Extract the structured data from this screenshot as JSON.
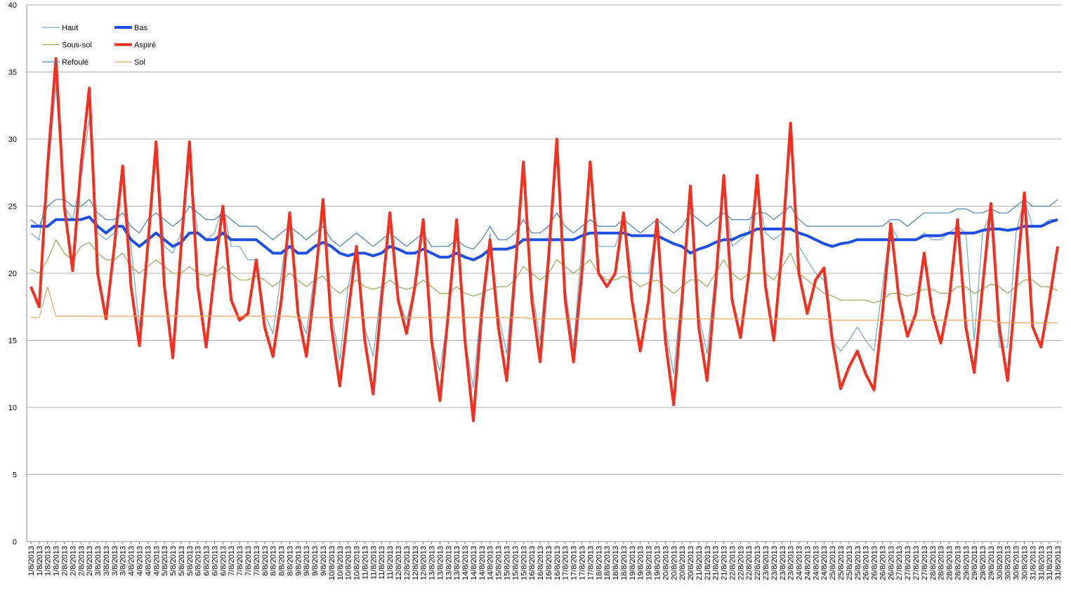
{
  "chart_data": {
    "type": "line",
    "categories": [
      "1/8/2013",
      "1/8/2013",
      "1/8/2013",
      "1/8/2013",
      "2/8/2013",
      "2/8/2013",
      "2/8/2013",
      "2/8/2013",
      "3/8/2013",
      "3/8/2013",
      "3/8/2013",
      "3/8/2013",
      "4/8/2013",
      "4/8/2013",
      "4/8/2013",
      "4/8/2013",
      "5/8/2013",
      "5/8/2013",
      "5/8/2013",
      "5/8/2013",
      "6/8/2013",
      "6/8/2013",
      "6/8/2013",
      "6/8/2013",
      "7/8/2013",
      "7/8/2013",
      "7/8/2013",
      "7/8/2013",
      "8/8/2013",
      "8/8/2013",
      "8/8/2013",
      "8/8/2013",
      "9/8/2013",
      "9/8/2013",
      "9/8/2013",
      "9/8/2013",
      "10/8/2013",
      "10/8/2013",
      "10/8/2013",
      "10/8/2013",
      "11/8/2013",
      "11/8/2013",
      "11/8/2013",
      "11/8/2013",
      "12/8/2013",
      "12/8/2013",
      "12/8/2013",
      "12/8/2013",
      "13/8/2013",
      "13/8/2013",
      "13/8/2013",
      "13/8/2013",
      "14/8/2013",
      "14/8/2013",
      "14/8/2013",
      "14/8/2013",
      "15/8/2013",
      "15/8/2013",
      "15/8/2013",
      "15/8/2013",
      "16/8/2013",
      "16/8/2013",
      "16/8/2013",
      "16/8/2013",
      "17/8/2013",
      "17/8/2013",
      "17/8/2013",
      "17/8/2013",
      "18/8/2013",
      "18/8/2013",
      "18/8/2013",
      "18/8/2013",
      "19/8/2013",
      "19/8/2013",
      "19/8/2013",
      "19/8/2013",
      "20/8/2013",
      "20/8/2013",
      "20/8/2013",
      "20/8/2013",
      "21/8/2013",
      "21/8/2013",
      "21/8/2013",
      "21/8/2013",
      "22/8/2013",
      "22/8/2013",
      "22/8/2013",
      "22/8/2013",
      "23/8/2013",
      "23/8/2013",
      "23/8/2013",
      "23/8/2013",
      "24/8/2013",
      "24/8/2013",
      "24/8/2013",
      "24/8/2013",
      "25/8/2013",
      "25/8/2013",
      "25/8/2013",
      "25/8/2013",
      "26/8/2013",
      "26/8/2013",
      "26/8/2013",
      "26/8/2013",
      "27/8/2013",
      "27/8/2013",
      "27/8/2013",
      "27/8/2013",
      "28/8/2013",
      "28/8/2013",
      "28/8/2013",
      "28/8/2013",
      "29/8/2013",
      "29/8/2013",
      "29/8/2013",
      "29/8/2013",
      "30/8/2013",
      "30/8/2013",
      "30/8/2013",
      "30/8/2013",
      "31/8/2013",
      "31/8/2013",
      "31/8/2013",
      "31/8/2013"
    ],
    "series": [
      {
        "name": "Haut",
        "color": "#6fa8c8",
        "linewidth": 1.2,
        "values": [
          23,
          22.5,
          27,
          34,
          25,
          24,
          27,
          31.5,
          23,
          22.5,
          23,
          27.5,
          22,
          16,
          22,
          28.5,
          22,
          21.5,
          23,
          28,
          23,
          22.5,
          23,
          25,
          22,
          22,
          21,
          21,
          17,
          15.5,
          20,
          24,
          17,
          15.5,
          20,
          25,
          17,
          13.5,
          19,
          22,
          16,
          13.8,
          19,
          24,
          18,
          16.5,
          19,
          23.5,
          15,
          12.7,
          17,
          23.5,
          15,
          11.5,
          18,
          23,
          17,
          14,
          21,
          27.5,
          19,
          15,
          22,
          28.5,
          19,
          14.5,
          22,
          27.5,
          22,
          22,
          22,
          24,
          20,
          20,
          20,
          23.5,
          16,
          12.5,
          19,
          26,
          17,
          14,
          20,
          26.5,
          22,
          22.5,
          23,
          26.5,
          23,
          22.5,
          23,
          29.5,
          22,
          21,
          20,
          19.5,
          15,
          14.2,
          15,
          16,
          15,
          14.2,
          19,
          23.5,
          22.5,
          22.5,
          22.5,
          23,
          22.5,
          22.5,
          23,
          23.5,
          23,
          15,
          23,
          24.5,
          14.5,
          14.5,
          23,
          25.5,
          23.5,
          23.5,
          24,
          24
        ]
      },
      {
        "name": "Sous-sol",
        "color": "#9aa35a",
        "linewidth": 1.2,
        "values": [
          20.3,
          20,
          21,
          22.5,
          21.5,
          21,
          22,
          22.3,
          21.5,
          21,
          21,
          21.5,
          20.5,
          20,
          20.5,
          21,
          20.5,
          20,
          20,
          20.5,
          20,
          19.8,
          20,
          20.5,
          20,
          19.5,
          19.5,
          19.8,
          19.5,
          19,
          19.5,
          20,
          19.5,
          19,
          19.5,
          19.8,
          19,
          18.5,
          19,
          19.5,
          19,
          18.8,
          19,
          19.5,
          19,
          18.8,
          19,
          19.5,
          19,
          18.5,
          18.5,
          19,
          18.5,
          18.3,
          18.5,
          18.8,
          19,
          19,
          19.5,
          20.5,
          20,
          19.5,
          20,
          21,
          20.5,
          20,
          20.5,
          21,
          20,
          19.5,
          19.5,
          19.8,
          19.5,
          19,
          19.3,
          19.5,
          19,
          18.5,
          19,
          19.5,
          19.5,
          19,
          20,
          21,
          20,
          19.5,
          20,
          20,
          20,
          19.5,
          20.5,
          21.5,
          20,
          19.5,
          19,
          18.5,
          18.3,
          18,
          18,
          18,
          18,
          17.8,
          18,
          18.5,
          18.5,
          18.3,
          18.5,
          18.8,
          18.8,
          18.5,
          18.5,
          19,
          19,
          18.5,
          18.8,
          19.2,
          19,
          18.5,
          19,
          19.5,
          19.5,
          19,
          19,
          18.7
        ]
      },
      {
        "name": "Refoulé",
        "color": "#4a7fa8",
        "linewidth": 1.2,
        "values": [
          24,
          23.5,
          25,
          25.5,
          25.5,
          25,
          25,
          25.5,
          24.5,
          24,
          24,
          24.5,
          23.5,
          23,
          24,
          24.5,
          24,
          23.5,
          24,
          25,
          24.5,
          24,
          24,
          24.5,
          24,
          23.5,
          23.5,
          23.5,
          23,
          22.5,
          23,
          23.5,
          23,
          22.5,
          23,
          23.5,
          22.5,
          22,
          22.5,
          23,
          22.5,
          22,
          22.5,
          23,
          22.5,
          22,
          22.5,
          23,
          22,
          22,
          22,
          22.5,
          22,
          21.8,
          22.5,
          23.5,
          22.5,
          22.5,
          23,
          24,
          23,
          23,
          23.5,
          24.5,
          23.5,
          23,
          23.5,
          24,
          23.5,
          23.5,
          23.5,
          24,
          23.5,
          23,
          23.5,
          24,
          23.5,
          23,
          23.5,
          24.5,
          24,
          23.5,
          24,
          24.5,
          24,
          24,
          24,
          24.5,
          24.5,
          24,
          24.5,
          25,
          24,
          23.5,
          23.5,
          23.5,
          23.5,
          23.5,
          23.5,
          23.5,
          23.5,
          23.5,
          23.5,
          24,
          24,
          23.5,
          24,
          24.5,
          24.5,
          24.5,
          24.5,
          24.8,
          24.8,
          24.5,
          24.5,
          24.8,
          24.5,
          24.5,
          25,
          25.5,
          25,
          25,
          25,
          25.5
        ]
      },
      {
        "name": "Bas",
        "color": "#1f4fe0",
        "linewidth": 4,
        "values": [
          23.5,
          23.5,
          23.5,
          24,
          24,
          24,
          24,
          24.2,
          23.5,
          23,
          23.5,
          23.5,
          22.5,
          22,
          22.5,
          23,
          22.5,
          22,
          22.3,
          23,
          23,
          22.5,
          22.5,
          23,
          22.5,
          22.5,
          22.5,
          22.5,
          22,
          21.5,
          21.5,
          22,
          21.5,
          21.5,
          22,
          22.3,
          22,
          21.5,
          21.3,
          21.5,
          21.5,
          21.3,
          21.5,
          22,
          21.8,
          21.5,
          21.5,
          21.8,
          21.5,
          21.2,
          21.2,
          21.5,
          21.2,
          21,
          21.3,
          21.8,
          21.8,
          21.8,
          22,
          22.5,
          22.5,
          22.5,
          22.5,
          22.5,
          22.5,
          22.5,
          22.8,
          23,
          23,
          23,
          23,
          23,
          22.8,
          22.8,
          22.8,
          22.8,
          22.5,
          22.2,
          22,
          21.5,
          21.8,
          22,
          22.3,
          22.5,
          22.5,
          22.8,
          23,
          23.3,
          23.3,
          23.3,
          23.3,
          23.3,
          23,
          22.8,
          22.5,
          22.2,
          22,
          22.2,
          22.3,
          22.5,
          22.5,
          22.5,
          22.5,
          22.5,
          22.5,
          22.5,
          22.5,
          22.8,
          22.8,
          22.8,
          23,
          23,
          23,
          23,
          23.2,
          23.3,
          23.3,
          23.2,
          23.3,
          23.5,
          23.5,
          23.5,
          23.8,
          24
        ]
      },
      {
        "name": "Aspiré",
        "color": "#f03020",
        "linewidth": 4,
        "values": [
          19,
          17.5,
          28,
          36,
          25,
          20.2,
          28,
          33.8,
          20,
          16.6,
          22,
          28,
          19,
          14.6,
          22,
          29.8,
          19,
          13.7,
          22,
          29.8,
          19,
          14.5,
          20,
          25,
          18,
          16.5,
          17,
          21,
          16,
          13.8,
          18,
          24.5,
          17,
          13.8,
          19,
          25.5,
          16,
          11.6,
          17,
          22,
          15,
          11,
          18,
          24.5,
          18,
          15.5,
          19,
          24,
          15,
          10.5,
          17,
          24,
          15,
          9,
          17,
          22.5,
          16,
          12,
          20,
          28.3,
          18,
          13.4,
          21,
          30,
          18,
          13.4,
          20,
          28.3,
          20,
          19,
          20,
          24.5,
          18,
          14.2,
          18,
          24,
          15,
          10.2,
          18,
          26.5,
          16,
          12,
          19,
          27.3,
          18,
          15.2,
          20,
          27.3,
          19,
          15,
          22,
          31.2,
          20,
          17,
          19.5,
          20.4,
          15,
          11.4,
          13,
          14.2,
          12.5,
          11.3,
          17,
          23.7,
          18,
          15.3,
          17,
          21.5,
          17,
          14.8,
          18,
          24,
          16,
          12.6,
          19,
          25.2,
          16,
          12,
          19,
          26,
          16,
          14.5,
          18,
          22
        ]
      },
      {
        "name": "Sol",
        "color": "#e8a060",
        "linewidth": 1.2,
        "values": [
          16.7,
          16.7,
          19,
          16.8,
          16.8,
          16.8,
          16.8,
          16.8,
          16.8,
          16.8,
          16.8,
          16.8,
          16.8,
          16.8,
          16.8,
          16.8,
          16.8,
          16.8,
          16.8,
          16.8,
          16.8,
          16.8,
          16.8,
          16.8,
          16.8,
          16.8,
          16.8,
          16.8,
          16.8,
          16.8,
          16.8,
          16.8,
          16.7,
          16.7,
          16.7,
          16.7,
          16.7,
          16.7,
          16.7,
          16.7,
          16.7,
          16.7,
          16.7,
          16.7,
          16.7,
          16.7,
          16.7,
          16.7,
          16.7,
          16.7,
          16.7,
          16.7,
          16.7,
          16.7,
          16.7,
          16.7,
          16.7,
          16.7,
          16.7,
          16.7,
          16.6,
          16.6,
          16.6,
          16.6,
          16.6,
          16.6,
          16.6,
          16.6,
          16.6,
          16.6,
          16.6,
          16.6,
          16.6,
          16.6,
          16.6,
          16.6,
          16.6,
          16.6,
          16.6,
          16.6,
          16.6,
          16.6,
          16.6,
          16.6,
          16.6,
          16.6,
          16.6,
          16.6,
          16.6,
          16.6,
          16.6,
          16.6,
          16.6,
          16.6,
          16.6,
          16.6,
          16.5,
          16.5,
          16.5,
          16.5,
          16.5,
          16.5,
          16.5,
          16.5,
          16.5,
          16.5,
          16.5,
          16.5,
          16.5,
          16.5,
          16.5,
          16.5,
          16.5,
          16.5,
          16.5,
          16.5,
          16.3,
          16.3,
          16.3,
          16.3,
          16.3,
          16.3,
          16.3,
          16.3
        ]
      }
    ],
    "ylim": [
      0,
      40
    ],
    "yticks": [
      0,
      5,
      10,
      15,
      20,
      25,
      30,
      35,
      40
    ],
    "grid": true,
    "legend": "top-left"
  }
}
